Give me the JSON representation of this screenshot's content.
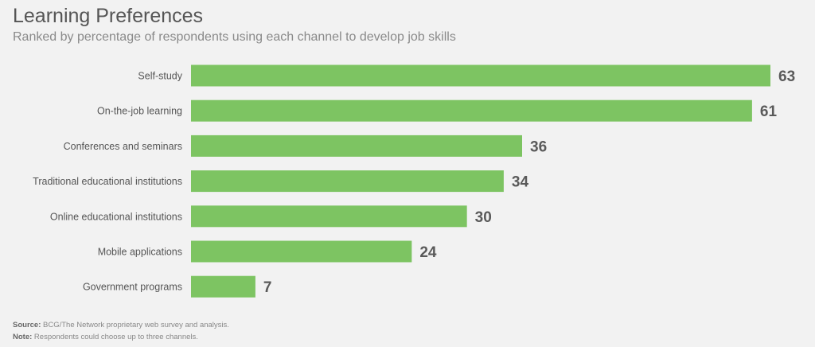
{
  "chart_data": {
    "type": "bar",
    "orientation": "horizontal",
    "title": "Learning Preferences",
    "subtitle": "Ranked by percentage of respondents using each channel to develop job skills",
    "categories": [
      "Self-study",
      "On-the-job learning",
      "Conferences and seminars",
      "Traditional educational institutions",
      "Online educational institutions",
      "Mobile applications",
      "Government programs"
    ],
    "values": [
      63,
      61,
      36,
      34,
      30,
      24,
      7
    ],
    "xlim": [
      0,
      63
    ],
    "grid": false,
    "bar_color": "#7dc462"
  },
  "footer": {
    "source_label": "Source:",
    "source_text": " BCG/The Network proprietary web survey and analysis.",
    "note_label": "Note:",
    "note_text": " Respondents could choose up to three channels."
  }
}
